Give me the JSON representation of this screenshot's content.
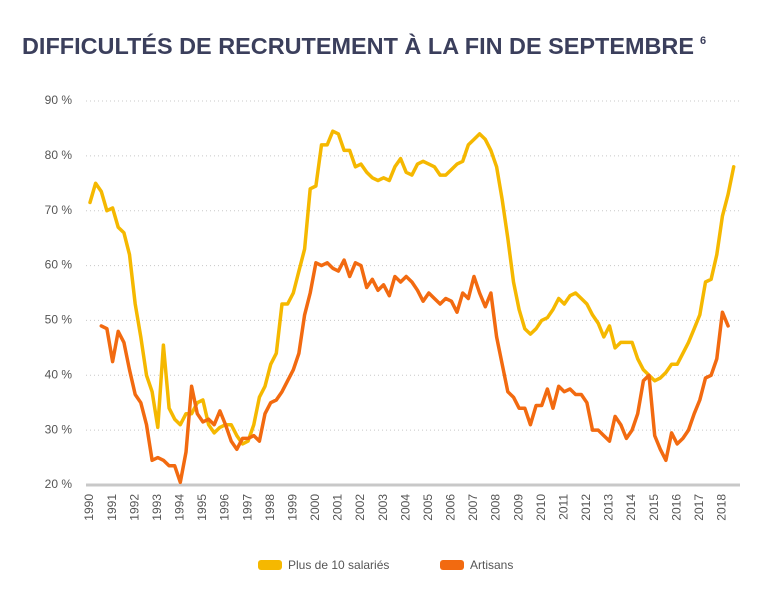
{
  "chart_data": {
    "type": "line",
    "title": "DIFFICULTÉS DE RECRUTEMENT À LA FIN DE SEPTEMBRE",
    "title_note": "6",
    "x": [
      1990,
      1990.25,
      1990.5,
      1990.75,
      1991,
      1991.25,
      1991.5,
      1991.75,
      1992,
      1992.25,
      1992.5,
      1992.75,
      1993,
      1993.25,
      1993.5,
      1993.75,
      1994,
      1994.25,
      1994.5,
      1994.75,
      1995,
      1995.25,
      1995.5,
      1995.75,
      1996,
      1996.25,
      1996.5,
      1996.75,
      1997,
      1997.25,
      1997.5,
      1997.75,
      1998,
      1998.25,
      1998.5,
      1998.75,
      1999,
      1999.25,
      1999.5,
      1999.75,
      2000,
      2000.25,
      2000.5,
      2000.75,
      2001,
      2001.25,
      2001.5,
      2001.75,
      2002,
      2002.25,
      2002.5,
      2002.75,
      2003,
      2003.25,
      2003.5,
      2003.75,
      2004,
      2004.25,
      2004.5,
      2004.75,
      2005,
      2005.25,
      2005.5,
      2005.75,
      2006,
      2006.25,
      2006.5,
      2006.75,
      2007,
      2007.25,
      2007.5,
      2007.75,
      2008,
      2008.25,
      2008.5,
      2008.75,
      2009,
      2009.25,
      2009.5,
      2009.75,
      2010,
      2010.25,
      2010.5,
      2010.75,
      2011,
      2011.25,
      2011.5,
      2011.75,
      2012,
      2012.25,
      2012.5,
      2012.75,
      2013,
      2013.25,
      2013.5,
      2013.75,
      2014,
      2014.25,
      2014.5,
      2014.75,
      2015,
      2015.25,
      2015.5,
      2015.75,
      2016,
      2016.25,
      2016.5,
      2016.75,
      2017,
      2017.25,
      2017.5,
      2017.75,
      2018,
      2018.25,
      2018.5
    ],
    "series": [
      {
        "name": "Plus de 10 salariés",
        "color": "#f5b800",
        "values": [
          71.5,
          75,
          73.5,
          70,
          70.5,
          67,
          66,
          62,
          53,
          47,
          40,
          37,
          30.5,
          45.5,
          34,
          32,
          31,
          33,
          33,
          35,
          35.5,
          31,
          29.5,
          30.5,
          31,
          31,
          29,
          27.5,
          28,
          31,
          36,
          38,
          42,
          44,
          53,
          53,
          55,
          59,
          63,
          74,
          74.5,
          82,
          82,
          84.5,
          84,
          81,
          81,
          78,
          78.5,
          77,
          76,
          75.5,
          76,
          75.5,
          78,
          79.5,
          77,
          76.5,
          78.5,
          79,
          78.5,
          78,
          76.5,
          76.5,
          77.5,
          78.5,
          79,
          82,
          83,
          84,
          83,
          81,
          78,
          72,
          65,
          57,
          52,
          48.5,
          47.5,
          48.5,
          50,
          50.5,
          52,
          54,
          53,
          54.5,
          55,
          54,
          53,
          51,
          49.5,
          47,
          49,
          45,
          46,
          46,
          46,
          43,
          41,
          40,
          39,
          39.5,
          40.5,
          42,
          42,
          44,
          46,
          48.5,
          51,
          57,
          57.5,
          62,
          69,
          73,
          78
        ]
      },
      {
        "name": "Artisans",
        "color": "#f26a10",
        "values": [
          null,
          null,
          49,
          48.5,
          42.5,
          48,
          46,
          41,
          36.5,
          35,
          31,
          24.5,
          25,
          24.5,
          23.5,
          23.5,
          20.5,
          26,
          38,
          33,
          31.5,
          32,
          31,
          33.5,
          31,
          28,
          26.5,
          28.5,
          28.5,
          29,
          28,
          33,
          35,
          35.5,
          37,
          39,
          41,
          44,
          51,
          55,
          60.5,
          60,
          60.5,
          59.5,
          59,
          61,
          58,
          60.5,
          60,
          56,
          57.5,
          55.5,
          56.5,
          54.5,
          58,
          57,
          58,
          57,
          55.5,
          53.5,
          55,
          54,
          53,
          54,
          53.5,
          51.5,
          55,
          54,
          58,
          55,
          52.5,
          55,
          47,
          42,
          37,
          36,
          34,
          34,
          31,
          34.5,
          34.5,
          37.5,
          34,
          38,
          37,
          37.5,
          36.5,
          36.5,
          35,
          30,
          30,
          29,
          28,
          32.5,
          31,
          28.5,
          30,
          33,
          39,
          40,
          29,
          26.5,
          24.5,
          29.5,
          27.5,
          28.5,
          30,
          33,
          35.5,
          39.5,
          40,
          43,
          51.5,
          49,
          null
        ]
      }
    ],
    "xlim": [
      1990,
      2019
    ],
    "xticks": [
      1990,
      1991,
      1992,
      1993,
      1994,
      1995,
      1996,
      1997,
      1998,
      1999,
      2000,
      2001,
      2002,
      2003,
      2004,
      2005,
      2006,
      2007,
      2008,
      2009,
      2010,
      2011,
      2012,
      2013,
      2014,
      2015,
      2016,
      2017,
      2018
    ],
    "ylim": [
      20,
      90
    ],
    "yticks": [
      {
        "value": 20,
        "label": "20 %"
      },
      {
        "value": 30,
        "label": "30 %"
      },
      {
        "value": 40,
        "label": "40 %"
      },
      {
        "value": 50,
        "label": "50 %"
      },
      {
        "value": 60,
        "label": "60 %"
      },
      {
        "value": 70,
        "label": "70 %"
      },
      {
        "value": 80,
        "label": "80 %"
      },
      {
        "value": 90,
        "label": "90 %"
      }
    ],
    "grid": true,
    "legend": "bottom"
  }
}
